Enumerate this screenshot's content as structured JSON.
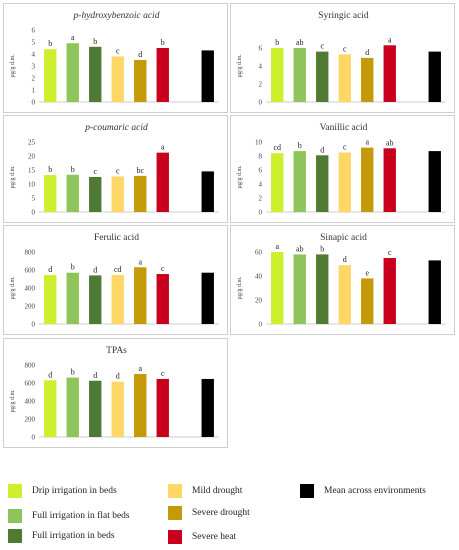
{
  "environments": [
    {
      "label": "Drip irrigation in beds",
      "color": "#ccf02e"
    },
    {
      "label": "Full irrigation in flat beds",
      "color": "#8fc45a"
    },
    {
      "label": "Full irrigation in beds",
      "color": "#4e7a34"
    },
    {
      "label": "Mild drought",
      "color": "#ffd766"
    },
    {
      "label": "Severe drought",
      "color": "#c49a08"
    },
    {
      "label": "Severe heat",
      "color": "#c8001e"
    },
    {
      "label": "Mean across environments",
      "color": "#000000"
    }
  ],
  "chart_data": [
    {
      "type": "bar",
      "title_parts": [
        {
          "text": "p",
          "italic": true
        },
        {
          "text": "-hydroxybenzoic acid",
          "italic": true
        }
      ],
      "ylabel": "µg/g d.m.",
      "ylim": [
        0,
        6
      ],
      "ticks": [
        0,
        1,
        2,
        3,
        4,
        5,
        6
      ],
      "values": [
        4.4,
        4.9,
        4.6,
        3.8,
        3.5,
        4.5,
        4.3
      ],
      "letters": [
        "b",
        "a",
        "b",
        "c",
        "d",
        "b",
        ""
      ]
    },
    {
      "type": "bar",
      "title_parts": [
        {
          "text": "Syringic acid",
          "italic": false
        }
      ],
      "ylabel": "µg/g d.m.",
      "ylim": [
        0,
        8
      ],
      "ticks": [
        0,
        2,
        4,
        6
      ],
      "values": [
        6.0,
        6.0,
        5.6,
        5.3,
        4.9,
        6.3,
        5.6
      ],
      "letters": [
        "b",
        "ab",
        "c",
        "c",
        "d",
        "a",
        ""
      ]
    },
    {
      "type": "bar",
      "title_parts": [
        {
          "text": "p",
          "italic": true
        },
        {
          "text": "-coumaric acid",
          "italic": true
        }
      ],
      "ylabel": "µg/g d.m.",
      "ylim": [
        0,
        25
      ],
      "ticks": [
        0,
        5,
        10,
        15,
        20,
        25
      ],
      "values": [
        13.2,
        13.3,
        12.5,
        12.7,
        12.9,
        21.2,
        14.5
      ],
      "letters": [
        "b",
        "b",
        "c",
        "c",
        "bc",
        "a",
        ""
      ]
    },
    {
      "type": "bar",
      "title_parts": [
        {
          "text": "Vanillic acid",
          "italic": false
        }
      ],
      "ylabel": "µg/g d.m.",
      "ylim": [
        0,
        10
      ],
      "ticks": [
        0,
        2,
        4,
        6,
        8,
        10
      ],
      "values": [
        8.4,
        8.7,
        8.1,
        8.5,
        9.2,
        9.1,
        8.7
      ],
      "letters": [
        "cd",
        "b",
        "d",
        "c",
        "a",
        "ab",
        ""
      ]
    },
    {
      "type": "bar",
      "title_parts": [
        {
          "text": "Ferulic acid",
          "italic": false
        }
      ],
      "ylabel": "µg/g d.m.",
      "ylim": [
        0,
        800
      ],
      "ticks": [
        0,
        200,
        400,
        600,
        800
      ],
      "values": [
        545,
        570,
        540,
        545,
        630,
        555,
        570
      ],
      "letters": [
        "d",
        "b",
        "d",
        "cd",
        "a",
        "c",
        ""
      ]
    },
    {
      "type": "bar",
      "title_parts": [
        {
          "text": "Sinapic acid",
          "italic": false
        }
      ],
      "ylabel": "µg/g d.m.",
      "ylim": [
        0,
        60
      ],
      "ticks": [
        0,
        20,
        40,
        60
      ],
      "values": [
        60,
        58,
        58,
        49,
        38,
        55,
        53
      ],
      "letters": [
        "a",
        "ab",
        "b",
        "d",
        "e",
        "c",
        ""
      ]
    },
    {
      "type": "bar",
      "title_parts": [
        {
          "text": "TPAs",
          "italic": false
        }
      ],
      "ylabel": "µg/g d.m.",
      "ylim": [
        0,
        800
      ],
      "ticks": [
        0,
        200,
        400,
        600,
        800
      ],
      "values": [
        630,
        660,
        625,
        615,
        700,
        645,
        645
      ],
      "letters": [
        "d",
        "b",
        "d",
        "d",
        "a",
        "c",
        ""
      ]
    }
  ]
}
